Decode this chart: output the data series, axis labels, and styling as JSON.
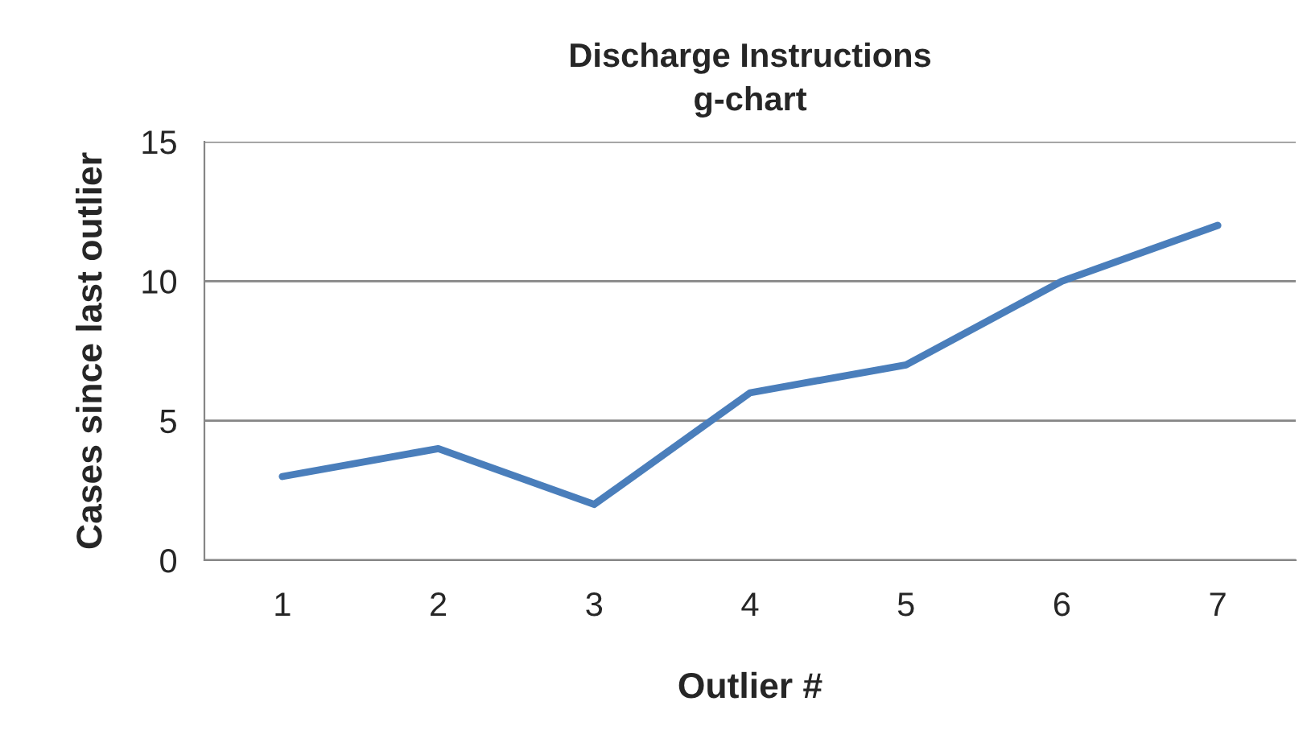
{
  "chart_data": {
    "type": "line",
    "title": "Discharge Instructions\ng-chart",
    "xlabel": "Outlier #",
    "ylabel": "Cases since last outlier",
    "categories": [
      "1",
      "2",
      "3",
      "4",
      "5",
      "6",
      "7"
    ],
    "series": [
      {
        "color": "#4a7ebb",
        "values": [
          3,
          4,
          2,
          6,
          7,
          10,
          12
        ]
      }
    ],
    "ylim": [
      0,
      15
    ],
    "yticks": [
      0,
      5,
      10,
      15
    ],
    "grid": "y",
    "legend": false,
    "marker": "none",
    "line_style": "solid"
  }
}
